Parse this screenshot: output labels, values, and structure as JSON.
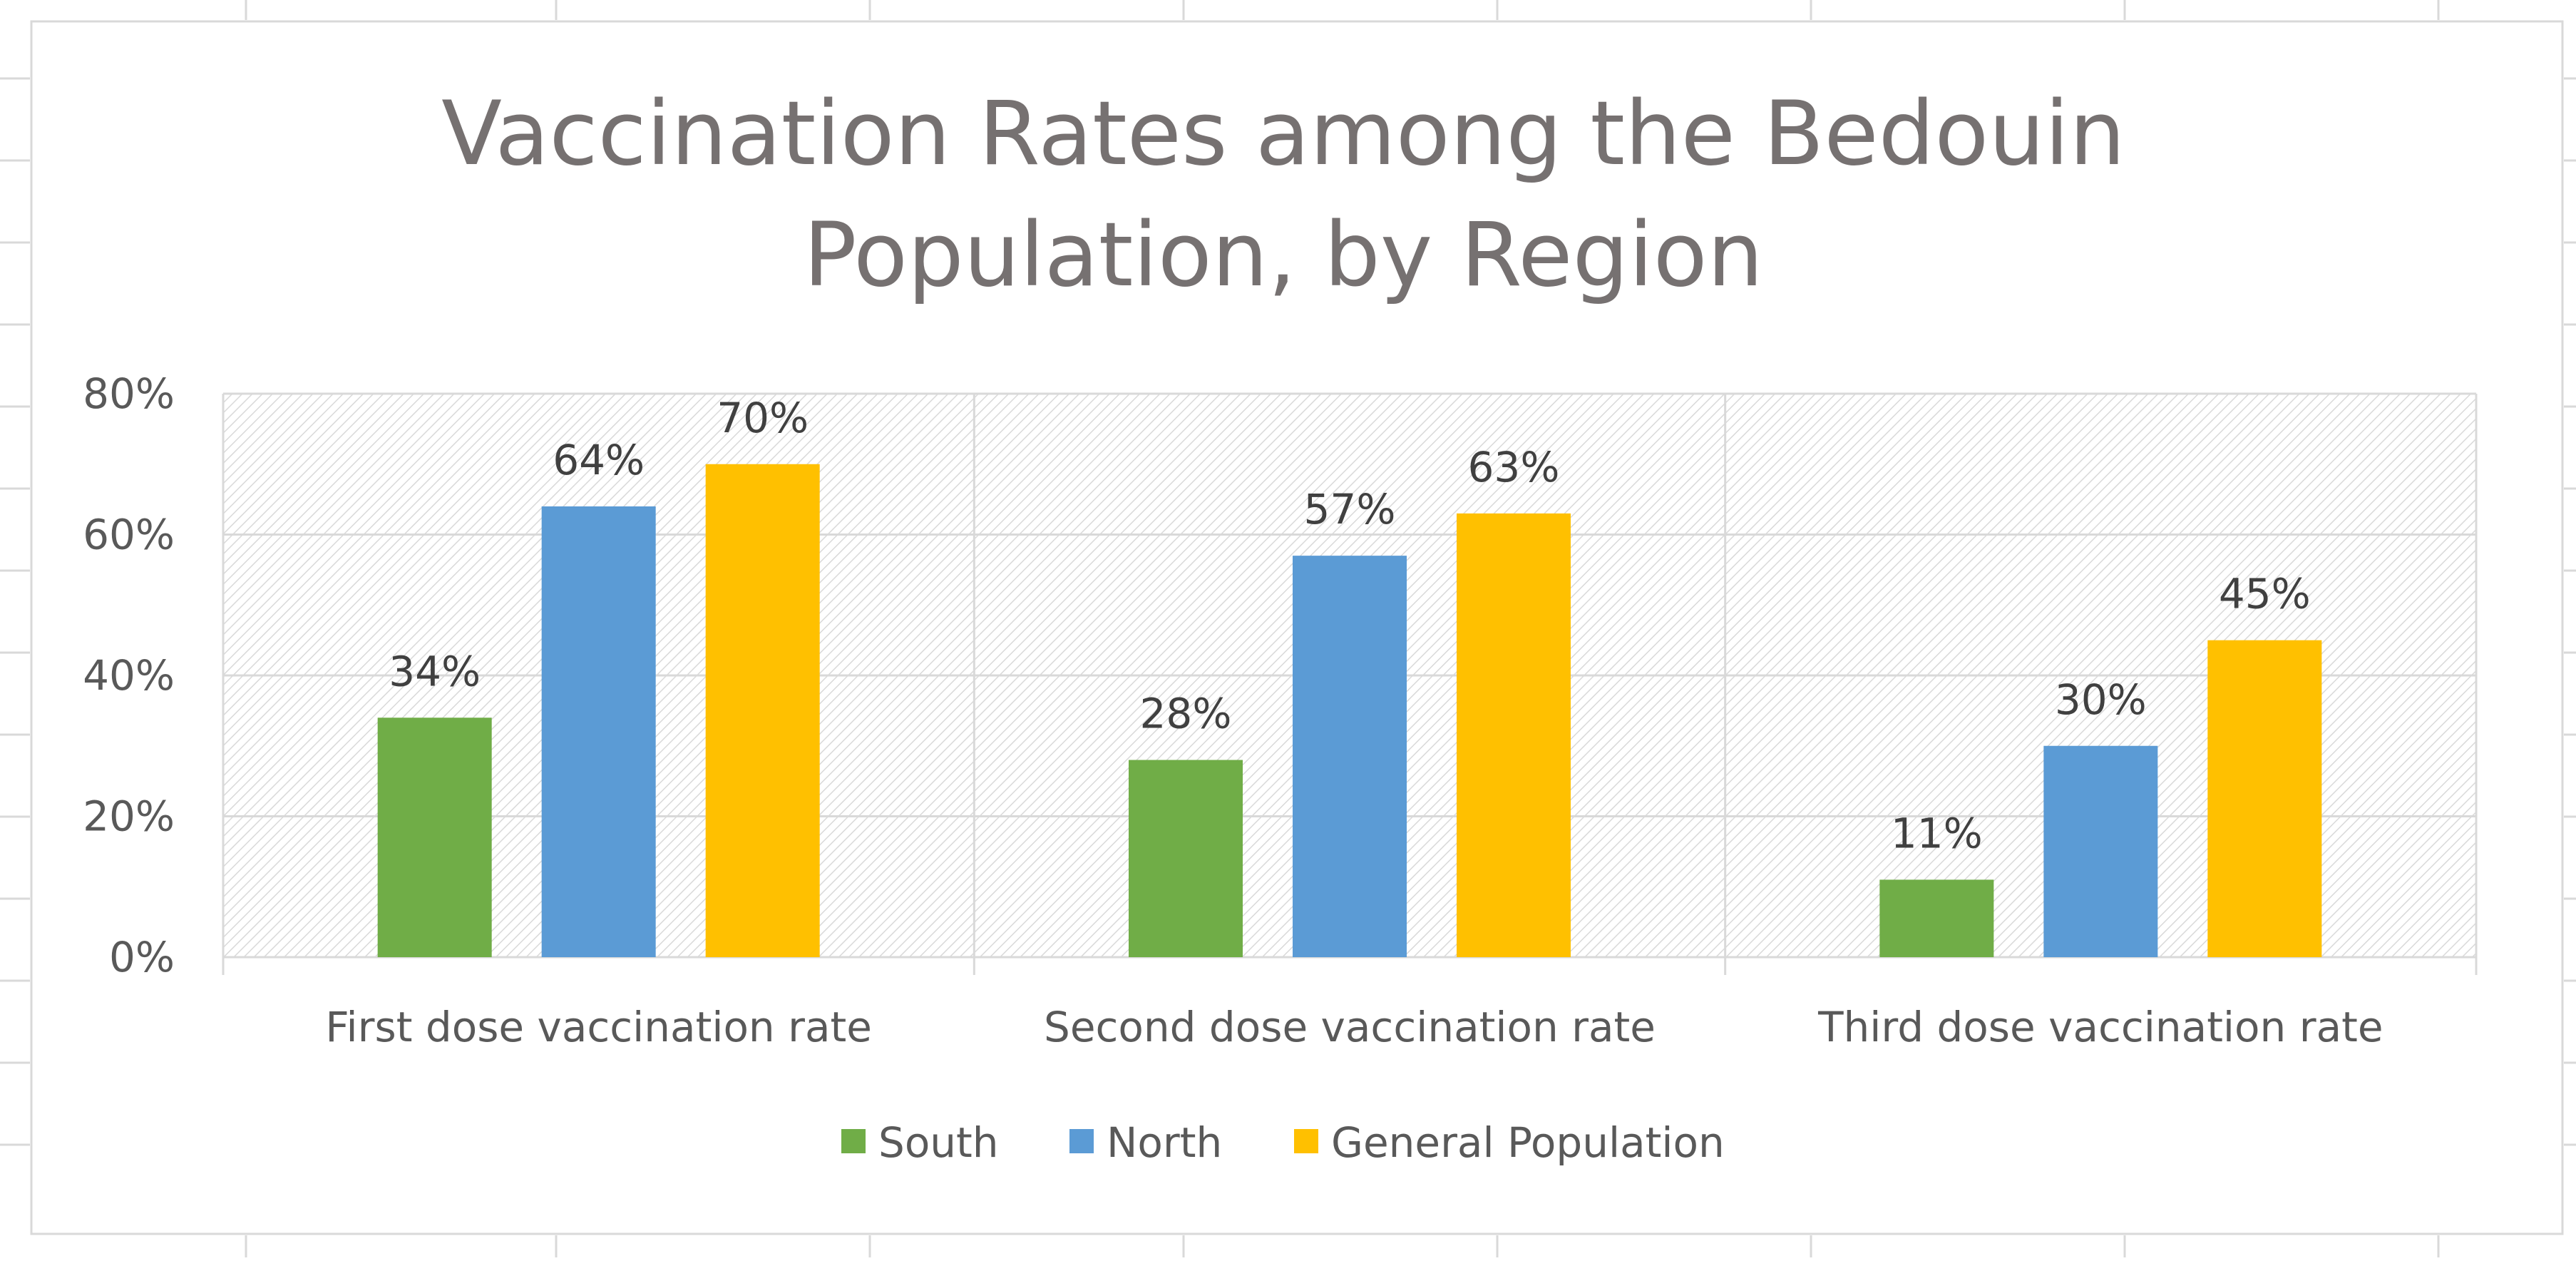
{
  "chart_data": {
    "type": "bar",
    "title_lines": [
      "Vaccination Rates among the Bedouin",
      "Population, by Region"
    ],
    "categories": [
      "First dose vaccination rate",
      "Second dose vaccination rate",
      "Third dose vaccination rate"
    ],
    "series": [
      {
        "name": "South",
        "color": "#70ad47",
        "values": [
          34,
          28,
          11
        ],
        "labels": [
          "34%",
          "28%",
          "11%"
        ]
      },
      {
        "name": "North",
        "color": "#5b9bd5",
        "values": [
          64,
          57,
          30
        ],
        "labels": [
          "64%",
          "57%",
          "30%"
        ]
      },
      {
        "name": "General Population",
        "color": "#ffc000",
        "values": [
          70,
          63,
          45
        ],
        "labels": [
          "70%",
          "63%",
          "45%"
        ]
      }
    ],
    "ylim": [
      0,
      80
    ],
    "yticks": [
      0,
      20,
      40,
      60,
      80
    ],
    "ytick_labels": [
      "0%",
      "20%",
      "40%",
      "60%",
      "80%"
    ],
    "xlabel": "",
    "ylabel": "",
    "grid": true,
    "legend_position": "bottom"
  }
}
